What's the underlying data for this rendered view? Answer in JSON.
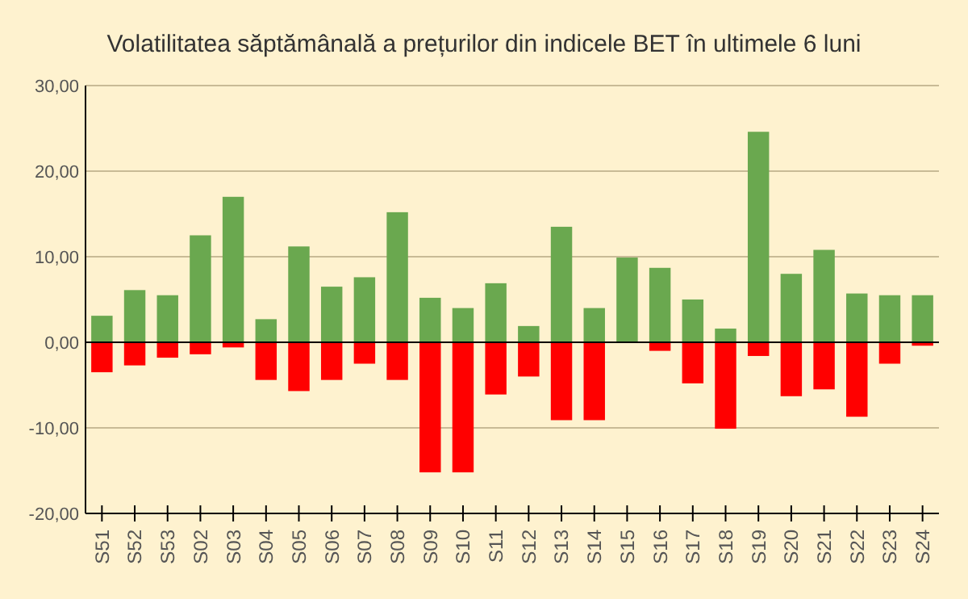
{
  "chart_data": {
    "type": "bar",
    "title": "Volatilitatea săptămânală a prețurilor din indicele BET în ultimele 6 luni",
    "categories": [
      "S51",
      "S52",
      "S53",
      "S02",
      "S03",
      "S04",
      "S05",
      "S06",
      "S07",
      "S08",
      "S09",
      "S10",
      "S11",
      "S12",
      "S13",
      "S14",
      "S15",
      "S16",
      "S17",
      "S18",
      "S19",
      "S20",
      "S21",
      "S22",
      "S23",
      "S24"
    ],
    "series": [
      {
        "color": "#6aa84f",
        "values": [
          3.1,
          6.1,
          5.5,
          12.5,
          17.0,
          2.7,
          11.2,
          6.5,
          7.6,
          15.2,
          5.2,
          4.0,
          6.9,
          1.9,
          13.5,
          4.0,
          9.9,
          8.7,
          5.0,
          1.6,
          24.6,
          8.0,
          10.8,
          5.7,
          5.5,
          5.5
        ]
      },
      {
        "color": "#ff0000",
        "values": [
          -3.5,
          -2.7,
          -1.8,
          -1.4,
          -0.6,
          -4.4,
          -5.7,
          -4.4,
          -2.5,
          -4.4,
          -15.2,
          -15.2,
          -6.1,
          -4.0,
          -9.1,
          -9.1,
          0,
          -1.0,
          -4.8,
          -10.1,
          -1.6,
          -6.3,
          -5.5,
          -8.7,
          -2.5,
          -0.4
        ]
      }
    ],
    "stacked": true,
    "ylim": [
      -20,
      30
    ],
    "yticks": [
      {
        "value": -20,
        "label": "-20,00"
      },
      {
        "value": -10,
        "label": "-10,00"
      },
      {
        "value": 0,
        "label": "0,00"
      },
      {
        "value": 10,
        "label": "10,00"
      },
      {
        "value": 20,
        "label": "20,00"
      },
      {
        "value": 30,
        "label": "30,00"
      }
    ],
    "grid": "y"
  }
}
